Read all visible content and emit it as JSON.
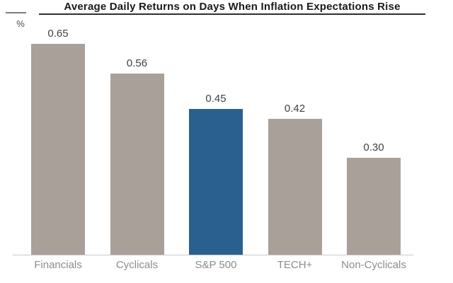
{
  "header": {
    "title": "Average Daily Returns on Days When Inflation Expectations Rise",
    "unit_label": "%"
  },
  "chart_data": {
    "type": "bar",
    "title": "Average Daily Returns on Days When Inflation Expectations Rise",
    "categories": [
      "Financials",
      "Cyclicals",
      "S&P 500",
      "TECH+",
      "Non-Cyclicals"
    ],
    "values": [
      0.65,
      0.56,
      0.45,
      0.42,
      0.3
    ],
    "value_labels": [
      "0.65",
      "0.56",
      "0.45",
      "0.42",
      "0.30"
    ],
    "xlabel": "",
    "ylabel": "%",
    "ylim": [
      0,
      0.75
    ],
    "grid": false,
    "legend": "none",
    "highlight_category": "S&P 500",
    "bar_colors": [
      "#a9a09a",
      "#a9a09a",
      "#2a608f",
      "#a9a09a",
      "#a9a09a"
    ],
    "colors": {
      "bar_default": "#a9a09a",
      "bar_highlight": "#2a608f",
      "title_text": "#1a1a1a",
      "title_underline": "#2f2f2f",
      "value_label": "#3f3f3f",
      "category_label": "#8c8c8c",
      "axis_line": "#c9c9c9"
    }
  }
}
